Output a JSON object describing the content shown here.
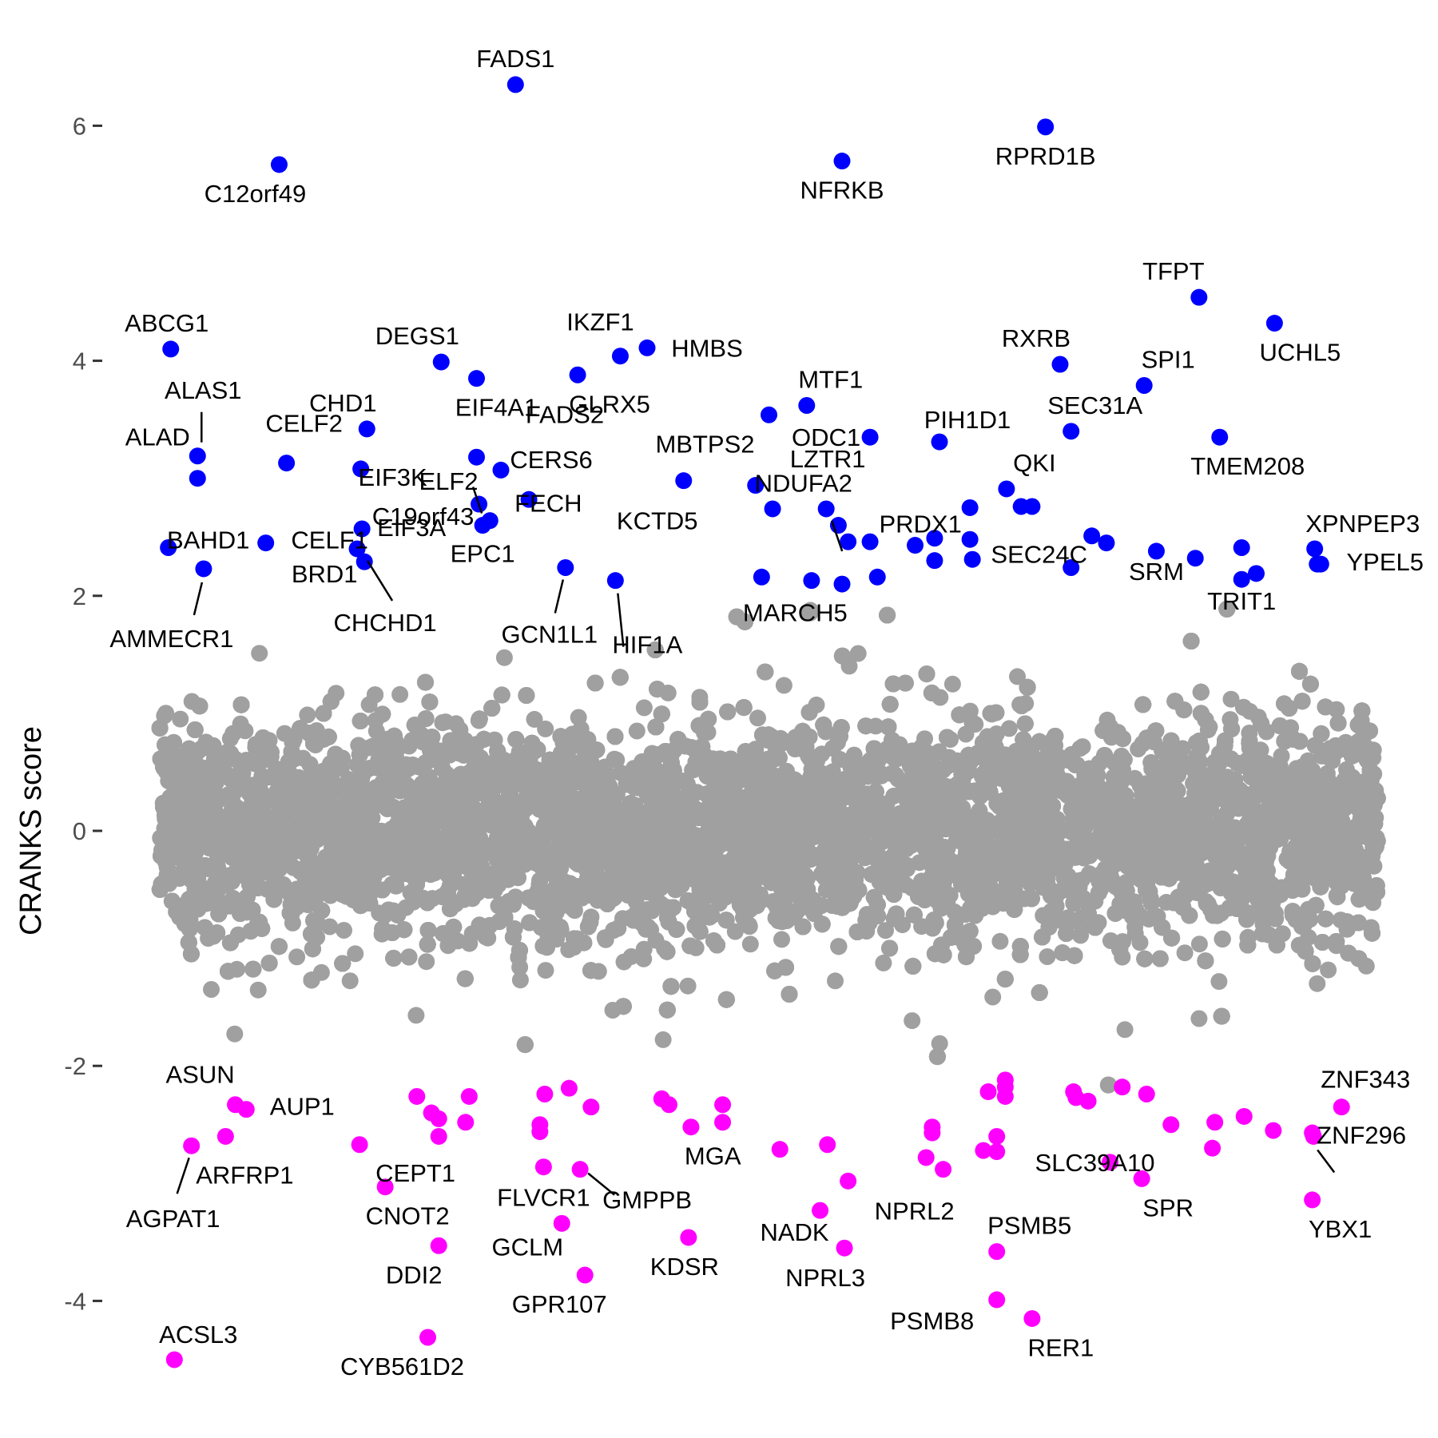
{
  "chart_data": {
    "type": "scatter",
    "title": "",
    "xlabel": "",
    "ylabel": "CRANKS score",
    "ylim": [
      -4.5,
      6.8
    ],
    "yticks": [
      -4,
      -2,
      0,
      2,
      4,
      6
    ],
    "grid": false,
    "legend": "none",
    "colors": {
      "background": "#a0a0a0",
      "high": "#0000ff",
      "low": "#ff00ff"
    },
    "background_points": {
      "count": 18000,
      "description_of_distribution": ""
    },
    "high": [
      {
        "gene": "FADS1",
        "x": 0.292,
        "y": 6.35
      },
      {
        "gene": "RPRD1B",
        "x": 0.727,
        "y": 5.99
      },
      {
        "gene": "NFRKB",
        "x": 0.56,
        "y": 5.7
      },
      {
        "gene": "C12orf49",
        "x": 0.098,
        "y": 5.67
      },
      {
        "gene": "TFPT",
        "x": 0.853,
        "y": 4.54
      },
      {
        "gene": "UCHL5",
        "x": 0.915,
        "y": 4.32
      },
      {
        "gene": "ABCG1",
        "x": 0.009,
        "y": 4.1
      },
      {
        "gene": "HMBS",
        "x": 0.4,
        "y": 4.11
      },
      {
        "gene": "IKZF1",
        "x": 0.378,
        "y": 4.04
      },
      {
        "gene": "DEGS1",
        "x": 0.231,
        "y": 3.99
      },
      {
        "gene": "RXRB",
        "x": 0.739,
        "y": 3.97
      },
      {
        "gene": "GLRX5",
        "x": 0.343,
        "y": 3.88
      },
      {
        "gene": "EIF4A1",
        "x": 0.26,
        "y": 3.85
      },
      {
        "gene": "SPI1",
        "x": 0.808,
        "y": 3.79
      },
      {
        "gene": "MTF1",
        "x": 0.531,
        "y": 3.62
      },
      {
        "gene": "CHD1",
        "x": 0.17,
        "y": 3.42
      },
      {
        "gene": "MBTPS2",
        "x": 0.5,
        "y": 3.54
      },
      {
        "gene": "SEC31A",
        "x": 0.748,
        "y": 3.4
      },
      {
        "gene": "ODC1",
        "x": 0.583,
        "y": 3.35
      },
      {
        "gene": "TMEM208",
        "x": 0.87,
        "y": 3.35
      },
      {
        "gene": "PIH1D1",
        "x": 0.64,
        "y": 3.31
      },
      {
        "gene": "ALAS1",
        "x": 0.031,
        "y": 3.19
      },
      {
        "gene": "CELF2",
        "x": 0.104,
        "y": 3.13
      },
      {
        "gene": "EIF3K",
        "x": 0.165,
        "y": 3.08
      },
      {
        "gene": "FADS2",
        "x": 0.28,
        "y": 3.07
      },
      {
        "gene": "ELF2",
        "x": 0.26,
        "y": 3.18
      },
      {
        "gene": "ALAD",
        "x": 0.031,
        "y": 3.0
      },
      {
        "gene": "KCTD5",
        "x": 0.43,
        "y": 2.98
      },
      {
        "gene": "NDUFA2",
        "x": 0.489,
        "y": 2.94
      },
      {
        "gene": "QKI",
        "x": 0.695,
        "y": 2.91
      },
      {
        "gene": "CERS6",
        "x": 0.303,
        "y": 2.82
      },
      {
        "gene": "C19orf43",
        "x": 0.262,
        "y": 2.78
      },
      {
        "gene": "PRDX1",
        "x": 0.665,
        "y": 2.75
      },
      {
        "gene": "XPNPEP3",
        "x": 0.948,
        "y": 2.4
      },
      {
        "gene": "FECH",
        "x": 0.271,
        "y": 2.64
      },
      {
        "gene": "EIF3A",
        "x": 0.166,
        "y": 2.57
      },
      {
        "gene": "LZTR1",
        "x": 0.547,
        "y": 2.74
      },
      {
        "gene": "BAHD1",
        "x": 0.007,
        "y": 2.41
      },
      {
        "gene": "CELF1",
        "x": 0.087,
        "y": 2.45
      },
      {
        "gene": "SRM",
        "x": 0.818,
        "y": 2.38
      },
      {
        "gene": "SEC24C",
        "x": 0.748,
        "y": 2.24
      },
      {
        "gene": "AMMECR1",
        "x": 0.036,
        "y": 2.23
      },
      {
        "gene": "BRD1",
        "x": 0.168,
        "y": 2.29
      },
      {
        "gene": "CHCHD1",
        "x": 0.162,
        "y": 2.4
      },
      {
        "gene": "EPC1",
        "x": 0.265,
        "y": 2.6
      },
      {
        "gene": "GCN1L1",
        "x": 0.333,
        "y": 2.24
      },
      {
        "gene": "HIF1A",
        "x": 0.374,
        "y": 2.13
      },
      {
        "gene": "MARCH5",
        "x": 0.494,
        "y": 2.16
      },
      {
        "gene": "TRIT1",
        "x": 0.888,
        "y": 2.14
      },
      {
        "gene": "YPEL5",
        "x": 0.95,
        "y": 2.27
      }
    ],
    "low": [
      {
        "gene": "ASUN",
        "x": 0.062,
        "y": -2.33
      },
      {
        "gene": "AUP1",
        "x": 0.071,
        "y": -2.37
      },
      {
        "gene": "AGPAT1",
        "x": 0.026,
        "y": -2.68
      },
      {
        "gene": "ARFRP1",
        "x": 0.054,
        "y": -2.6
      },
      {
        "gene": "CEPT1",
        "x": 0.164,
        "y": -2.67
      },
      {
        "gene": "CNOT2",
        "x": 0.185,
        "y": -3.03
      },
      {
        "gene": "DDI2",
        "x": 0.229,
        "y": -3.53
      },
      {
        "gene": "ACSL3",
        "x": 0.012,
        "y": -4.5
      },
      {
        "gene": "CYB561D2",
        "x": 0.22,
        "y": -4.31
      },
      {
        "gene": "FLVCR1",
        "x": 0.315,
        "y": -2.86
      },
      {
        "gene": "GMPPB",
        "x": 0.345,
        "y": -2.88
      },
      {
        "gene": "GCLM",
        "x": 0.33,
        "y": -3.34
      },
      {
        "gene": "GPR107",
        "x": 0.349,
        "y": -3.78
      },
      {
        "gene": "KDSR",
        "x": 0.434,
        "y": -3.46
      },
      {
        "gene": "MGA",
        "x": 0.509,
        "y": -2.71
      },
      {
        "gene": "NADK",
        "x": 0.542,
        "y": -3.23
      },
      {
        "gene": "NPRL3",
        "x": 0.562,
        "y": -3.55
      },
      {
        "gene": "NPRL2",
        "x": 0.565,
        "y": -2.98
      },
      {
        "gene": "PSMB5",
        "x": 0.687,
        "y": -3.58
      },
      {
        "gene": "PSMB8",
        "x": 0.687,
        "y": -3.99
      },
      {
        "gene": "RER1",
        "x": 0.716,
        "y": -4.15
      },
      {
        "gene": "SLC39A10",
        "x": 0.78,
        "y": -2.82
      },
      {
        "gene": "SPR",
        "x": 0.806,
        "y": -2.96
      },
      {
        "gene": "ZNF343",
        "x": 0.97,
        "y": -2.35
      },
      {
        "gene": "ZNF296",
        "x": 0.947,
        "y": -2.6
      },
      {
        "gene": "YBX1",
        "x": 0.946,
        "y": -3.14
      }
    ],
    "low_unlabeled": [
      {
        "x": 0.211,
        "y": -2.26
      },
      {
        "x": 0.223,
        "y": -2.4
      },
      {
        "x": 0.229,
        "y": -2.45
      },
      {
        "x": 0.229,
        "y": -2.6
      },
      {
        "x": 0.254,
        "y": -2.26
      },
      {
        "x": 0.251,
        "y": -2.48
      },
      {
        "x": 0.316,
        "y": -2.24
      },
      {
        "x": 0.336,
        "y": -2.19
      },
      {
        "x": 0.312,
        "y": -2.5
      },
      {
        "x": 0.312,
        "y": -2.56
      },
      {
        "x": 0.354,
        "y": -2.35
      },
      {
        "x": 0.412,
        "y": -2.28
      },
      {
        "x": 0.418,
        "y": -2.33
      },
      {
        "x": 0.436,
        "y": -2.52
      },
      {
        "x": 0.462,
        "y": -2.33
      },
      {
        "x": 0.462,
        "y": -2.48
      },
      {
        "x": 0.548,
        "y": -2.67
      },
      {
        "x": 0.634,
        "y": -2.52
      },
      {
        "x": 0.634,
        "y": -2.57
      },
      {
        "x": 0.629,
        "y": -2.78
      },
      {
        "x": 0.643,
        "y": -2.88
      },
      {
        "x": 0.68,
        "y": -2.22
      },
      {
        "x": 0.694,
        "y": -2.18
      },
      {
        "x": 0.694,
        "y": -2.26
      },
      {
        "x": 0.694,
        "y": -2.12
      },
      {
        "x": 0.676,
        "y": -2.72
      },
      {
        "x": 0.687,
        "y": -2.6
      },
      {
        "x": 0.687,
        "y": -2.73
      },
      {
        "x": 0.75,
        "y": -2.22
      },
      {
        "x": 0.752,
        "y": -2.27
      },
      {
        "x": 0.762,
        "y": -2.3
      },
      {
        "x": 0.79,
        "y": -2.18
      },
      {
        "x": 0.81,
        "y": -2.24
      },
      {
        "x": 0.83,
        "y": -2.5
      },
      {
        "x": 0.866,
        "y": -2.48
      },
      {
        "x": 0.864,
        "y": -2.7
      },
      {
        "x": 0.89,
        "y": -2.43
      },
      {
        "x": 0.914,
        "y": -2.55
      },
      {
        "x": 0.946,
        "y": -2.57
      }
    ],
    "high_unlabeled": [
      {
        "x": 0.535,
        "y": 2.13
      },
      {
        "x": 0.56,
        "y": 2.1
      },
      {
        "x": 0.589,
        "y": 2.16
      },
      {
        "x": 0.503,
        "y": 2.74
      },
      {
        "x": 0.557,
        "y": 2.6
      },
      {
        "x": 0.565,
        "y": 2.46
      },
      {
        "x": 0.583,
        "y": 2.46
      },
      {
        "x": 0.62,
        "y": 2.43
      },
      {
        "x": 0.636,
        "y": 2.49
      },
      {
        "x": 0.636,
        "y": 2.3
      },
      {
        "x": 0.665,
        "y": 2.48
      },
      {
        "x": 0.667,
        "y": 2.31
      },
      {
        "x": 0.707,
        "y": 2.76
      },
      {
        "x": 0.716,
        "y": 2.76
      },
      {
        "x": 0.765,
        "y": 2.51
      },
      {
        "x": 0.777,
        "y": 2.45
      },
      {
        "x": 0.85,
        "y": 2.32
      },
      {
        "x": 0.9,
        "y": 2.19
      },
      {
        "x": 0.888,
        "y": 2.41
      },
      {
        "x": 0.953,
        "y": 2.27
      }
    ]
  }
}
